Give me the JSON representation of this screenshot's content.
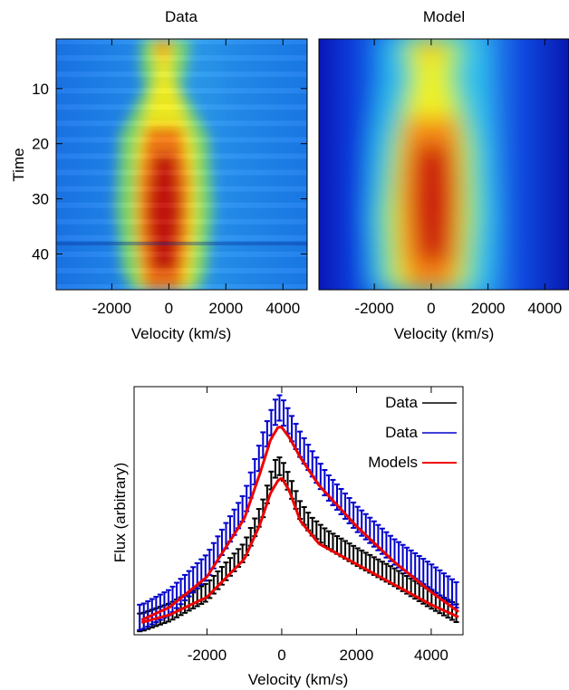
{
  "chart_data": [
    {
      "type": "heatmap",
      "title": "Data",
      "xlabel": "Velocity (km/s)",
      "ylabel": "Time",
      "xlim": [
        -3950,
        4850
      ],
      "ylim": [
        46.5,
        1
      ],
      "xticks": [
        -2000,
        0,
        2000,
        4000
      ],
      "yticks": [
        10,
        20,
        30,
        40
      ],
      "xtick_labels": [
        "-2000",
        "0",
        "2000",
        "4000"
      ],
      "ytick_labels": [
        "10",
        "20",
        "30",
        "40"
      ],
      "colormap": "jet"
    },
    {
      "type": "heatmap",
      "title": "Model",
      "xlabel": "Velocity (km/s)",
      "ylabel": "",
      "xlim": [
        -3950,
        4850
      ],
      "ylim": [
        46.5,
        1
      ],
      "xticks": [
        -2000,
        0,
        2000,
        4000
      ],
      "xtick_labels": [
        "-2000",
        "0",
        "2000",
        "4000"
      ],
      "colormap": "jet"
    },
    {
      "type": "line",
      "xlabel": "Velocity (km/s)",
      "ylabel": "Flux (arbitrary)",
      "xlim": [
        -3950,
        4850
      ],
      "xticks": [
        -2000,
        0,
        2000,
        4000
      ],
      "xtick_labels": [
        "-2000",
        "0",
        "2000",
        "4000"
      ],
      "legend_position": "top-right",
      "series": [
        {
          "name": "Data",
          "color": "#000000",
          "style": "errorbars",
          "x": [
            -3750,
            -3000,
            -2000,
            -1000,
            -500,
            -200,
            -100,
            0,
            250,
            500,
            800,
            1200,
            2000,
            3000,
            4000,
            4750
          ],
          "y": [
            0.02,
            0.06,
            0.14,
            0.3,
            0.47,
            0.62,
            0.64,
            0.63,
            0.55,
            0.46,
            0.4,
            0.35,
            0.28,
            0.2,
            0.11,
            0.05
          ],
          "err": 0.035
        },
        {
          "name": "Data",
          "color": "#0000cc",
          "style": "errorbars",
          "x": [
            -3750,
            -3000,
            -2000,
            -1000,
            -500,
            -200,
            -100,
            0,
            250,
            500,
            800,
            1200,
            2000,
            3000,
            4000,
            4750
          ],
          "y": [
            0.04,
            0.1,
            0.24,
            0.48,
            0.72,
            0.84,
            0.87,
            0.86,
            0.79,
            0.72,
            0.65,
            0.56,
            0.43,
            0.3,
            0.2,
            0.12
          ],
          "err": 0.05
        },
        {
          "name": "Models",
          "color": "#ee0000",
          "style": "line",
          "curves": [
            {
              "x": [
                -3750,
                -3000,
                -2000,
                -1000,
                -600,
                -300,
                -100,
                0,
                200,
                500,
                1000,
                2000,
                3000,
                4000,
                4750
              ],
              "y": [
                0.02,
                0.05,
                0.12,
                0.27,
                0.4,
                0.53,
                0.58,
                0.59,
                0.54,
                0.42,
                0.33,
                0.25,
                0.17,
                0.09,
                0.04
              ]
            },
            {
              "x": [
                -3750,
                -3000,
                -2000,
                -1000,
                -600,
                -300,
                -100,
                0,
                200,
                500,
                1000,
                2000,
                3000,
                4000,
                4750
              ],
              "y": [
                0.03,
                0.08,
                0.2,
                0.43,
                0.6,
                0.74,
                0.79,
                0.79,
                0.75,
                0.67,
                0.56,
                0.4,
                0.26,
                0.14,
                0.06
              ]
            }
          ]
        }
      ]
    }
  ]
}
